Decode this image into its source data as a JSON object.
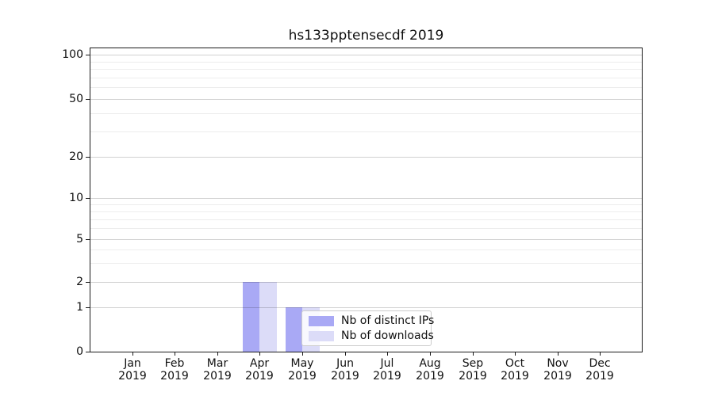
{
  "figure": {
    "background_color": "#ffffff",
    "text_color": "#111111"
  },
  "chart_data": {
    "type": "bar",
    "title": "hs133pptensecdf 2019",
    "categories": [
      {
        "month": "Jan",
        "year": "2019"
      },
      {
        "month": "Feb",
        "year": "2019"
      },
      {
        "month": "Mar",
        "year": "2019"
      },
      {
        "month": "Apr",
        "year": "2019"
      },
      {
        "month": "May",
        "year": "2019"
      },
      {
        "month": "Jun",
        "year": "2019"
      },
      {
        "month": "Jul",
        "year": "2019"
      },
      {
        "month": "Aug",
        "year": "2019"
      },
      {
        "month": "Sep",
        "year": "2019"
      },
      {
        "month": "Oct",
        "year": "2019"
      },
      {
        "month": "Nov",
        "year": "2019"
      },
      {
        "month": "Dec",
        "year": "2019"
      }
    ],
    "series": [
      {
        "name": "Nb of distinct IPs",
        "color": "#a9a9f5",
        "values": [
          0,
          0,
          0,
          2,
          1,
          0,
          0,
          0,
          0,
          0,
          0,
          0
        ]
      },
      {
        "name": "Nb of downloads",
        "color": "#dcdcf8",
        "values": [
          0,
          0,
          0,
          2,
          1,
          0,
          0,
          0,
          0,
          0,
          0,
          0
        ]
      }
    ],
    "xlabel": "",
    "ylabel": "",
    "y_axis": {
      "scale": "symlog-like",
      "major_ticks": [
        0,
        1,
        2,
        5,
        10,
        20,
        50,
        100
      ],
      "minor_ticks": [
        3,
        4,
        6,
        7,
        8,
        9,
        30,
        40,
        60,
        70,
        80,
        90
      ],
      "range": [
        0,
        112
      ]
    },
    "grid": {
      "major_color": "rgba(0,0,0,0.18)",
      "minor_color": "rgba(0,0,0,0.07)"
    },
    "legend": {
      "position": "lower center-right inside plot",
      "border_color": "#cccccc"
    }
  }
}
